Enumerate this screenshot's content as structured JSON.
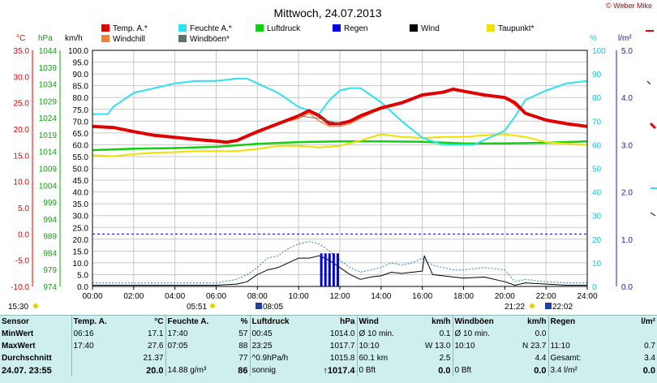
{
  "title": "Mittwoch, 24.07.2013",
  "copyright": "© Weber Mike",
  "colors": {
    "temp": "#e00000",
    "windchill": "#f08030",
    "humidity": "#30e0f0",
    "gusts": "#607070",
    "pressure": "#10d010",
    "rain": "#0000e0",
    "wind": "#000000",
    "dewpoint": "#f0e000",
    "grid": "#c8c8c8",
    "table_bg": "#cfeeee"
  },
  "axis_units": {
    "temp": "°C",
    "pressure": "hPa",
    "wind": "km/h",
    "humidity": "%",
    "solar": "l/m²"
  },
  "sun_times": {
    "left_start": "15:30",
    "sunrise": "05:51",
    "sunrise2": "08:05",
    "sunset": "21:22",
    "sunset2": "22:02"
  },
  "chart_data": {
    "type": "line",
    "x_ticks": [
      "00:00",
      "02:00",
      "04:00",
      "06:00",
      "08:00",
      "10:00",
      "12:00",
      "14:00",
      "16:00",
      "18:00",
      "20:00",
      "22:00",
      "24:00"
    ],
    "x_range_hours": [
      0,
      24
    ],
    "axes": {
      "temp": {
        "range": [
          -10,
          35
        ],
        "ticks": [
          "35.0",
          "30.0",
          "25.0",
          "20.0",
          "15.0",
          "10.0",
          "5.0",
          "0.0",
          "-5.0",
          "-10.0"
        ]
      },
      "pressure": {
        "range": [
          974,
          1045
        ],
        "ticks": [
          "1044",
          "1039",
          "1034",
          "1029",
          "1024",
          "1019",
          "1014",
          "1009",
          "1004",
          "999",
          "994",
          "989",
          "984",
          "979",
          "974"
        ]
      },
      "wind": {
        "range": [
          0,
          100
        ],
        "ticks": [
          "100.0",
          "95.0",
          "90.0",
          "85.0",
          "80.0",
          "75.0",
          "70.0",
          "65.0",
          "60.0",
          "55.0",
          "50.0",
          "45.0",
          "40.0",
          "35.0",
          "30.0",
          "25.0",
          "20.0",
          "15.0",
          "10.0",
          "5.0",
          "0.0"
        ]
      },
      "humidity": {
        "range": [
          0,
          100
        ],
        "ticks": [
          "100",
          "90",
          "80",
          "70",
          "60",
          "50",
          "40",
          "30",
          "20",
          "10",
          "0"
        ]
      },
      "solar": {
        "range": [
          0,
          5
        ],
        "ticks": [
          "5.0",
          "4.0",
          "3.0",
          "2.0",
          "1.0",
          "0.0"
        ]
      }
    },
    "legend": [
      {
        "name": "Temp. A.*",
        "key": "temp"
      },
      {
        "name": "Feuchte A.*",
        "key": "humidity"
      },
      {
        "name": "Luftdruck",
        "key": "pressure"
      },
      {
        "name": "Regen",
        "key": "rain"
      },
      {
        "name": "Wind",
        "key": "wind"
      },
      {
        "name": "Taupunkt*",
        "key": "dewpoint"
      },
      {
        "name": "Windchill",
        "key": "windchill"
      },
      {
        "name": "Windböen*",
        "key": "gusts"
      }
    ],
    "series": [
      {
        "name": "Temp. A.*",
        "key": "temp",
        "axis": "temp",
        "x": [
          0,
          1,
          2,
          3,
          4,
          5,
          6,
          6.5,
          7,
          8,
          9,
          10,
          10.5,
          11,
          11.5,
          12,
          12.5,
          13,
          14,
          15,
          16,
          17,
          17.5,
          18,
          19,
          20,
          20.5,
          21,
          22,
          23,
          24
        ],
        "y": [
          20.5,
          20.3,
          19.5,
          18.8,
          18.4,
          18.0,
          17.7,
          17.5,
          17.8,
          19.5,
          21.0,
          22.5,
          23.5,
          22.5,
          21.0,
          21.0,
          21.5,
          22.5,
          24.0,
          25.0,
          26.5,
          27.0,
          27.6,
          27.2,
          26.5,
          26.0,
          25.0,
          23.0,
          21.7,
          21.0,
          20.5
        ]
      },
      {
        "name": "Windchill",
        "key": "windchill",
        "axis": "temp",
        "x": [
          0,
          1,
          2,
          3,
          4,
          5,
          6,
          6.5,
          7,
          8,
          9,
          10,
          10.5,
          11,
          11.5,
          12,
          12.5,
          13,
          14,
          15,
          16,
          17,
          17.5,
          18,
          19,
          20,
          20.5,
          21,
          22,
          23,
          24
        ],
        "y": [
          20.5,
          20.3,
          19.5,
          18.8,
          18.4,
          18.0,
          17.7,
          17.5,
          17.8,
          19.2,
          21.0,
          22.0,
          23.0,
          21.5,
          20.5,
          20.5,
          21.0,
          22.0,
          24.0,
          25.0,
          26.5,
          27.0,
          27.6,
          27.2,
          26.5,
          26.0,
          24.5,
          22.8,
          21.7,
          21.0,
          20.5
        ]
      },
      {
        "name": "Feuchte A.*",
        "key": "humidity",
        "axis": "humidity",
        "x": [
          0,
          0.75,
          1,
          2,
          3,
          4,
          5,
          6,
          7,
          7.5,
          8,
          9,
          10,
          11,
          11.5,
          12,
          12.5,
          13,
          14,
          15,
          16,
          17,
          18,
          18.5,
          19,
          20,
          20.5,
          21,
          22,
          23,
          24
        ],
        "y": [
          73,
          73,
          76,
          82,
          84,
          86,
          87,
          87,
          88,
          88,
          86,
          82,
          76,
          73,
          79,
          83,
          84,
          84,
          78,
          70,
          63,
          60,
          60,
          60,
          62,
          66,
          72,
          79,
          83,
          86,
          87
        ]
      },
      {
        "name": "Windböen*",
        "key": "gusts",
        "axis": "temp",
        "x": [
          10,
          11,
          12
        ],
        "y": [
          22.5,
          22.0,
          21.0
        ]
      },
      {
        "name": "Luftdruck",
        "key": "pressure",
        "axis": "pressure",
        "x": [
          0,
          2,
          4,
          6,
          8,
          10,
          12,
          14,
          16,
          18,
          20,
          22,
          24
        ],
        "y": [
          1015.0,
          1015.4,
          1015.6,
          1016.0,
          1016.9,
          1017.4,
          1017.6,
          1017.6,
          1017.5,
          1017.0,
          1017.0,
          1017.2,
          1017.6
        ]
      },
      {
        "name": "Taupunkt*",
        "key": "dewpoint",
        "axis": "temp",
        "x": [
          0,
          1,
          2,
          3,
          4,
          5,
          6,
          7,
          8,
          9,
          10,
          11,
          12,
          13,
          14,
          15,
          16,
          17,
          18,
          19,
          20,
          21,
          22,
          23,
          24
        ],
        "y": [
          15.0,
          14.8,
          15.2,
          15.5,
          15.6,
          15.8,
          15.8,
          15.8,
          16.2,
          16.8,
          16.8,
          16.5,
          16.8,
          17.8,
          19.0,
          18.5,
          18.3,
          18.5,
          18.5,
          18.8,
          19.0,
          18.5,
          17.5,
          17.2,
          17.0
        ]
      },
      {
        "name": "Wind",
        "key": "wind",
        "axis": "wind",
        "x": [
          0,
          2,
          4,
          6,
          7,
          7.5,
          8,
          8.5,
          9,
          9.5,
          10,
          10.5,
          11,
          11.5,
          12,
          12.5,
          13,
          13.5,
          14,
          14.5,
          15,
          15.5,
          16,
          16.1,
          16.5,
          17,
          17.5,
          18,
          19,
          20,
          20.5,
          21,
          22,
          23,
          24
        ],
        "y": [
          0.5,
          0.5,
          0.5,
          0.5,
          1.0,
          2.0,
          5.0,
          7.0,
          8.0,
          10.0,
          12.0,
          12.0,
          13.0,
          11.0,
          8.0,
          5.0,
          3.0,
          4.0,
          4.5,
          6.0,
          5.5,
          6.0,
          6.5,
          13.0,
          5.0,
          4.5,
          4.0,
          3.5,
          4.0,
          2.0,
          0.5,
          1.5,
          1.0,
          0.5,
          0.5
        ]
      },
      {
        "name": "Windböen* (km/h)",
        "key": "gusts_kmh",
        "axis": "wind",
        "x": [
          0,
          2,
          4,
          6,
          7,
          7.5,
          8,
          8.5,
          9,
          9.5,
          10,
          10.5,
          11,
          11.5,
          12,
          12.5,
          13,
          13.5,
          14,
          14.5,
          15,
          15.5,
          16,
          16.5,
          17,
          17.5,
          18,
          19,
          20,
          20.5,
          21,
          22,
          23,
          24
        ],
        "y": [
          1.5,
          1.5,
          1.5,
          1.5,
          3.0,
          5.0,
          8.0,
          12.0,
          13.0,
          16.0,
          18.0,
          19.0,
          18.0,
          15.0,
          11.0,
          8.0,
          6.0,
          7.0,
          8.0,
          10.0,
          9.0,
          10.0,
          12.0,
          9.0,
          8.0,
          7.0,
          7.0,
          8.0,
          7.0,
          2.0,
          3.0,
          2.0,
          1.5,
          1.5
        ]
      },
      {
        "name": "Regen",
        "key": "rain",
        "axis": "wind",
        "type": "bar",
        "x": [
          11.1,
          11.3,
          11.5,
          11.7,
          11.9
        ],
        "y": [
          14,
          14,
          14,
          14,
          14
        ]
      }
    ],
    "reference_lines": [
      {
        "axis": "temp",
        "value": 0.0,
        "style": "dashed",
        "color": "#0000c0"
      }
    ]
  },
  "table": {
    "headers": [
      "Sensor",
      "Temp. A.",
      "°C",
      "Feuchte A.",
      "%",
      "Luftdruck",
      "hPa",
      "Wind",
      "km/h",
      "Windböen",
      "km/h",
      "Regen",
      "l/m²"
    ],
    "rows": [
      {
        "label": "MinWert",
        "cells": [
          "06:16",
          "17.1",
          "17:40",
          "57",
          "00:45",
          "1014.0",
          "Ø 10 min.",
          "0.1",
          "Ø 10 min.",
          "0.0",
          "",
          ""
        ]
      },
      {
        "label": "MaxWert",
        "cells": [
          "17:40",
          "27.6",
          "07:05",
          "88",
          "23:25",
          "1017.7",
          "10:10",
          "W 13.0",
          "10:10",
          "N 23.7",
          "11:10",
          "0.7"
        ]
      },
      {
        "label": "Durchschnitt",
        "cells": [
          "",
          "21.37",
          "",
          "77",
          "^0.9hPa/h",
          "1015.8",
          "60.1 km",
          "2.5",
          "",
          "4.4",
          "Gesamt:",
          "3.4"
        ]
      },
      {
        "label": "24.07. 23:55",
        "cells": [
          "",
          "20.0",
          "14.88 g/m³",
          "86",
          "sonnig",
          "↑1017.4",
          "0 Bft",
          "0.0",
          "0 Bft",
          "0.0",
          "3.4 l/m²",
          "0.0"
        ]
      }
    ]
  }
}
